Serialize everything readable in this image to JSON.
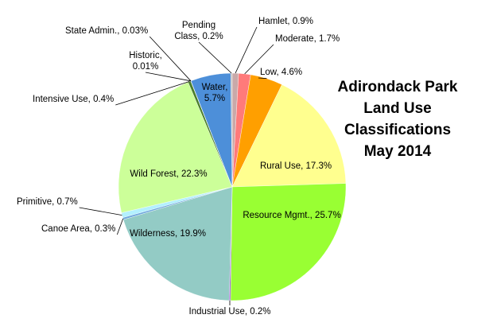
{
  "chart_data": {
    "type": "pie",
    "title": [
      "Adirondack Park",
      "Land Use",
      "Classifications",
      "May 2014"
    ],
    "slices": [
      {
        "name": "Hamlet",
        "value": 0.9,
        "label": "Hamlet, 0.9%",
        "color": "#c9a9a9"
      },
      {
        "name": "Moderate",
        "value": 1.7,
        "label": "Moderate, 1.7%",
        "color": "#ff7a7a"
      },
      {
        "name": "Low",
        "value": 4.6,
        "label": "Low, 4.6%",
        "color": "#ff9f00"
      },
      {
        "name": "Rural Use",
        "value": 17.3,
        "label": "Rural Use, 17.3%",
        "color": "#ffff8f"
      },
      {
        "name": "Resource Mgmt.",
        "value": 25.7,
        "label": "Resource Mgmt., 25.7%",
        "color": "#99ff33"
      },
      {
        "name": "Industrial Use",
        "value": 0.2,
        "label": "Industrial Use, 0.2%",
        "color": "#9966cc"
      },
      {
        "name": "Wilderness",
        "value": 19.9,
        "label": "Wilderness, 19.9%",
        "color": "#93cbc5"
      },
      {
        "name": "Canoe Area",
        "value": 0.3,
        "label": "Canoe Area, 0.3%",
        "color": "#6fa8dc"
      },
      {
        "name": "Primitive",
        "value": 0.7,
        "label": "Primitive, 0.7%",
        "color": "#b3f0ff"
      },
      {
        "name": "Wild Forest",
        "value": 22.3,
        "label": "Wild Forest, 22.3%",
        "color": "#ccff99"
      },
      {
        "name": "Intensive Use",
        "value": 0.4,
        "label": "Intensive Use, 0.4%",
        "color": "#4a7f2a"
      },
      {
        "name": "Historic",
        "value": 0.01,
        "label": "Historic,\n0.01%",
        "color": "#333333"
      },
      {
        "name": "State Admin.",
        "value": 0.03,
        "label": "State Admin., 0.03%",
        "color": "#555555"
      },
      {
        "name": "Water",
        "value": 5.7,
        "label": "Water,\n5.7%",
        "color": "#4d8fd9"
      },
      {
        "name": "Pending Class",
        "value": 0.2,
        "label": "Pending\nClass, 0.2%",
        "color": "#bbbbbb"
      }
    ]
  }
}
